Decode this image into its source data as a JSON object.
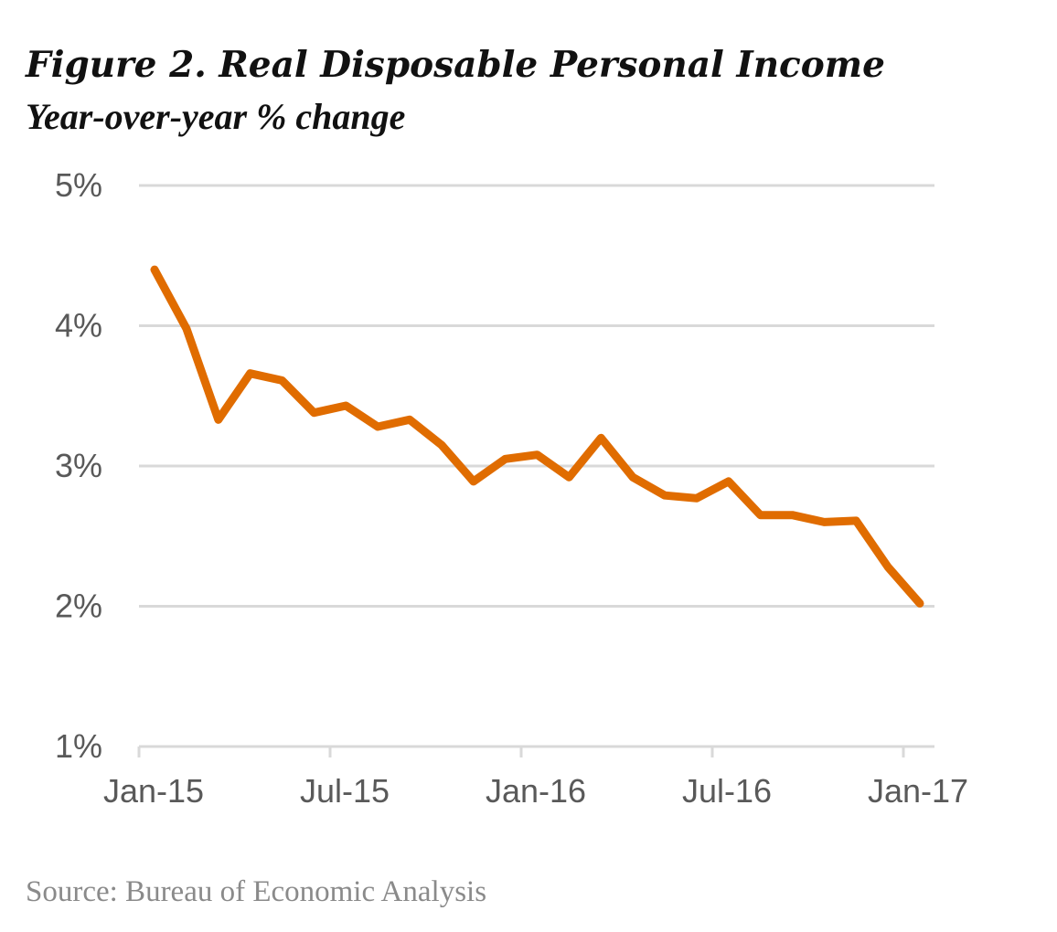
{
  "chart_data": {
    "type": "line",
    "title": "Figure 2. Real Disposable Personal Income",
    "subtitle": "Year-over-year % change",
    "xlabel": "",
    "ylabel": "",
    "ylim": [
      1,
      5
    ],
    "yticks": [
      1,
      2,
      3,
      4,
      5
    ],
    "ytick_labels": [
      "1%",
      "2%",
      "3%",
      "4%",
      "5%"
    ],
    "xtick_labels": [
      "Jan-15",
      "Jul-15",
      "Jan-16",
      "Jul-16",
      "Jan-17"
    ],
    "xtick_indices": [
      0,
      6,
      12,
      18,
      24
    ],
    "grid": true,
    "series": [
      {
        "name": "Real Disposable Personal Income",
        "color": "#e06c00",
        "x": [
          "Jan-15",
          "Feb-15",
          "Mar-15",
          "Apr-15",
          "May-15",
          "Jun-15",
          "Jul-15",
          "Aug-15",
          "Sep-15",
          "Oct-15",
          "Nov-15",
          "Dec-15",
          "Jan-16",
          "Feb-16",
          "Mar-16",
          "Apr-16",
          "May-16",
          "Jun-16",
          "Jul-16",
          "Aug-16",
          "Sep-16",
          "Oct-16",
          "Nov-16",
          "Dec-16",
          "Jan-17"
        ],
        "values": [
          4.4,
          3.98,
          3.33,
          3.66,
          3.61,
          3.38,
          3.43,
          3.28,
          3.33,
          3.15,
          2.89,
          3.05,
          3.08,
          2.92,
          3.2,
          2.92,
          2.79,
          2.77,
          2.89,
          2.65,
          2.65,
          2.6,
          2.61,
          2.28,
          2.02
        ]
      }
    ]
  },
  "source": "Source: Bureau of Economic Analysis"
}
